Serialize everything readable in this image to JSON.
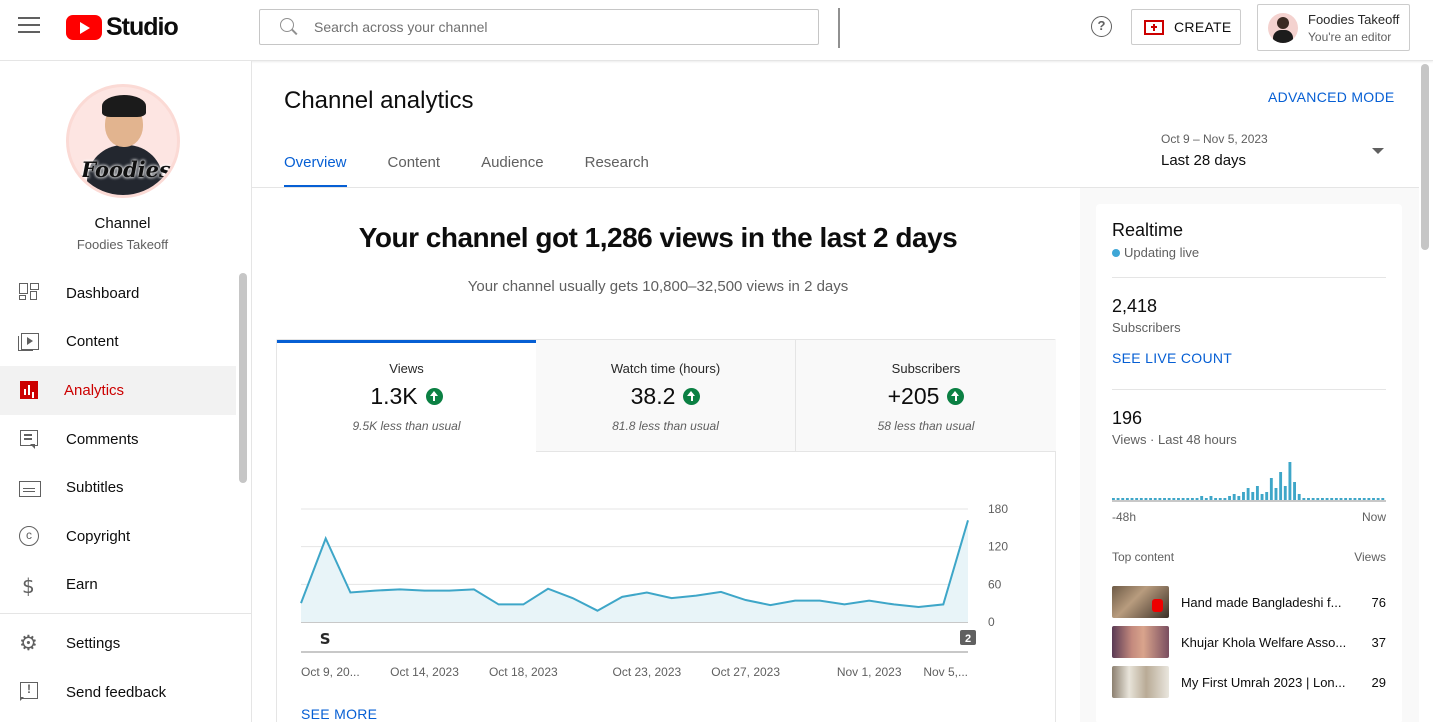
{
  "header": {
    "logo_text": "Studio",
    "search_placeholder": "Search across your channel",
    "help_label": "?",
    "create_label": "CREATE",
    "account_name": "Foodies Takeoff",
    "account_role": "You're an editor"
  },
  "sidebar": {
    "avatar_text": "Foodies",
    "channel_label": "Channel",
    "channel_name": "Foodies Takeoff",
    "items": [
      {
        "label": "Dashboard",
        "icon": "dashboard-icon"
      },
      {
        "label": "Content",
        "icon": "content-icon"
      },
      {
        "label": "Analytics",
        "icon": "analytics-icon",
        "active": true
      },
      {
        "label": "Comments",
        "icon": "comments-icon"
      },
      {
        "label": "Subtitles",
        "icon": "subtitles-icon"
      },
      {
        "label": "Copyright",
        "icon": "copyright-icon"
      },
      {
        "label": "Earn",
        "icon": "earn-icon"
      }
    ],
    "bottom_items": [
      {
        "label": "Settings",
        "icon": "settings-icon"
      },
      {
        "label": "Send feedback",
        "icon": "feedback-icon"
      }
    ]
  },
  "main": {
    "title": "Channel analytics",
    "advanced_mode": "ADVANCED MODE",
    "tabs": [
      "Overview",
      "Content",
      "Audience",
      "Research"
    ],
    "active_tab": "Overview",
    "date_range": {
      "dates": "Oct 9 – Nov 5, 2023",
      "label": "Last 28 days"
    },
    "headline": "Your channel got 1,286 views in the last 2 days",
    "subline": "Your channel usually gets 10,800–32,500 views in 2 days",
    "metrics": [
      {
        "label": "Views",
        "value": "1.3K",
        "note": "9.5K less than usual",
        "active": true
      },
      {
        "label": "Watch time (hours)",
        "value": "38.2",
        "note": "81.8 less than usual"
      },
      {
        "label": "Subscribers",
        "value": "+205",
        "note": "58 less than usual"
      }
    ],
    "see_more": "SEE MORE"
  },
  "chart_data": {
    "type": "area",
    "title": "",
    "xlabel": "",
    "ylabel": "",
    "ylim": [
      0,
      180
    ],
    "y_ticks": [
      0,
      60,
      120,
      180
    ],
    "x_tick_labels": [
      "Oct 9, 20...",
      "Oct 14, 2023",
      "Oct 18, 2023",
      "Oct 23, 2023",
      "Oct 27, 2023",
      "Nov 1, 2023",
      "Nov 5,..."
    ],
    "x": [
      "Oct 9",
      "Oct 10",
      "Oct 11",
      "Oct 12",
      "Oct 13",
      "Oct 14",
      "Oct 15",
      "Oct 16",
      "Oct 17",
      "Oct 18",
      "Oct 19",
      "Oct 20",
      "Oct 21",
      "Oct 22",
      "Oct 23",
      "Oct 24",
      "Oct 25",
      "Oct 26",
      "Oct 27",
      "Oct 28",
      "Oct 29",
      "Oct 30",
      "Oct 31",
      "Nov 1",
      "Nov 2",
      "Nov 3",
      "Nov 4",
      "Nov 5"
    ],
    "series": [
      {
        "values": [
          30,
          133,
          47,
          50,
          52,
          50,
          50,
          52,
          28,
          28,
          53,
          38,
          18,
          40,
          47,
          38,
          42,
          48,
          35,
          27,
          34,
          34,
          28,
          34,
          28,
          24,
          28,
          162
        ]
      }
    ],
    "markers": {
      "shorts_badge": "S",
      "count_badge": "2"
    },
    "color": "#3ea6c8"
  },
  "realtime": {
    "title": "Realtime",
    "status": "Updating live",
    "subscribers_value": "2,418",
    "subscribers_label": "Subscribers",
    "live_count": "SEE LIVE COUNT",
    "views_value": "196",
    "views_label": "Views · Last 48 hours",
    "axis_start": "-48h",
    "axis_end": "Now",
    "bars": [
      1,
      1,
      1,
      1,
      1,
      1,
      1,
      1,
      1,
      1,
      1,
      1,
      1,
      1,
      1,
      0,
      1,
      0,
      1,
      2,
      1,
      2,
      1,
      0,
      1,
      2,
      3,
      2,
      4,
      6,
      4,
      7,
      3,
      4,
      11,
      6,
      14,
      7,
      19,
      9,
      3,
      1,
      1,
      1,
      1,
      0,
      1,
      1,
      1,
      1,
      1,
      1,
      1,
      1,
      1,
      1,
      1,
      1,
      1
    ],
    "top_content_label": "Top content",
    "views_column_label": "Views",
    "top_content": [
      {
        "title": "Hand made Bangladeshi f...",
        "views": "76"
      },
      {
        "title": "Khujar Khola Welfare Asso...",
        "views": "37"
      },
      {
        "title": "My First Umrah 2023 | Lon...",
        "views": "29"
      }
    ]
  }
}
